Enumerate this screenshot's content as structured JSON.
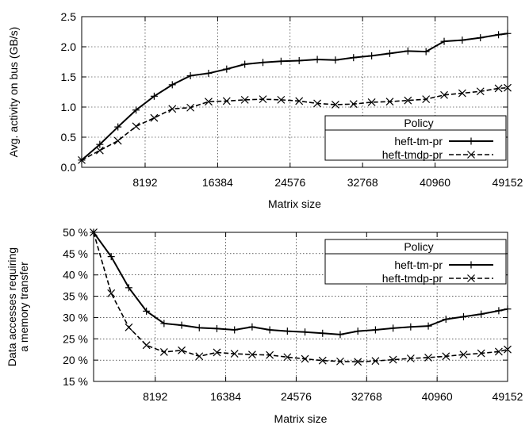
{
  "chart_data": [
    {
      "type": "line",
      "ylabel": "Avg. activity on bus (GB/s)",
      "xlabel": "Matrix size",
      "xlim": [
        1024,
        49152
      ],
      "ylim": [
        0,
        2.5
      ],
      "xticks": [
        8192,
        16384,
        24576,
        32768,
        40960,
        49152
      ],
      "xtick_labels": [
        "8192",
        "16384",
        "24576",
        "32768",
        "40960",
        "49152"
      ],
      "yticks": [
        0,
        0.5,
        1,
        1.5,
        2,
        2.5
      ],
      "ytick_labels": [
        "0.0",
        "0.5",
        "1.0",
        "1.5",
        "2.0",
        "2.5"
      ],
      "grid": true,
      "legend": {
        "title": "Policy",
        "position": "lower-right"
      },
      "x": [
        1024,
        3072,
        5120,
        7168,
        9216,
        11264,
        13312,
        15360,
        17408,
        19456,
        21504,
        23552,
        25600,
        27648,
        29696,
        31744,
        33792,
        35840,
        37888,
        39936,
        41984,
        44032,
        46080,
        48128,
        49152
      ],
      "series": [
        {
          "name": "heft-tm-pr",
          "style": "solid",
          "marker": "plus",
          "values": [
            0.12,
            0.38,
            0.67,
            0.95,
            1.18,
            1.37,
            1.52,
            1.56,
            1.63,
            1.71,
            1.74,
            1.76,
            1.77,
            1.79,
            1.78,
            1.82,
            1.85,
            1.89,
            1.93,
            1.92,
            2.09,
            2.11,
            2.15,
            2.2,
            2.22
          ]
        },
        {
          "name": "heft-tmdp-pr",
          "style": "dashed",
          "marker": "x",
          "values": [
            0.12,
            0.28,
            0.44,
            0.68,
            0.82,
            0.97,
            0.99,
            1.09,
            1.1,
            1.12,
            1.13,
            1.12,
            1.1,
            1.06,
            1.04,
            1.05,
            1.08,
            1.09,
            1.11,
            1.13,
            1.2,
            1.23,
            1.26,
            1.31,
            1.32
          ]
        }
      ]
    },
    {
      "type": "line",
      "ylabel": "Data accesses requiring a memory transfer",
      "ylabel_lines": [
        "Data accesses requiring",
        "a memory transfer"
      ],
      "xlabel": "Matrix size",
      "xlim": [
        1024,
        49152
      ],
      "ylim": [
        15,
        50
      ],
      "xticks": [
        8192,
        16384,
        24576,
        32768,
        40960,
        49152
      ],
      "xtick_labels": [
        "8192",
        "16384",
        "24576",
        "32768",
        "40960",
        "49152"
      ],
      "yticks": [
        15,
        20,
        25,
        30,
        35,
        40,
        45,
        50
      ],
      "ytick_labels": [
        "15 %",
        "20 %",
        "25 %",
        "30 %",
        "35 %",
        "40 %",
        "45 %",
        "50 %"
      ],
      "grid": true,
      "legend": {
        "title": "Policy",
        "position": "top-right"
      },
      "x": [
        1024,
        3072,
        5120,
        7168,
        9216,
        11264,
        13312,
        15360,
        17408,
        19456,
        21504,
        23552,
        25600,
        27648,
        29696,
        31744,
        33792,
        35840,
        37888,
        39936,
        41984,
        44032,
        46080,
        48128,
        49152
      ],
      "series": [
        {
          "name": "heft-tm-pr",
          "style": "solid",
          "marker": "plus",
          "values": [
            50.0,
            44.3,
            37.0,
            31.5,
            28.6,
            28.2,
            27.6,
            27.4,
            27.1,
            27.8,
            27.1,
            26.8,
            26.6,
            26.3,
            26.0,
            26.8,
            27.1,
            27.5,
            27.8,
            28.0,
            29.6,
            30.2,
            30.8,
            31.6,
            32.0
          ]
        },
        {
          "name": "heft-tmdp-pr",
          "style": "dashed",
          "marker": "x",
          "values": [
            50.0,
            35.7,
            27.7,
            23.5,
            21.9,
            22.3,
            20.9,
            21.8,
            21.5,
            21.3,
            21.2,
            20.7,
            20.3,
            19.9,
            19.7,
            19.6,
            19.8,
            20.1,
            20.4,
            20.6,
            20.9,
            21.3,
            21.6,
            22.0,
            22.5
          ]
        }
      ]
    }
  ]
}
